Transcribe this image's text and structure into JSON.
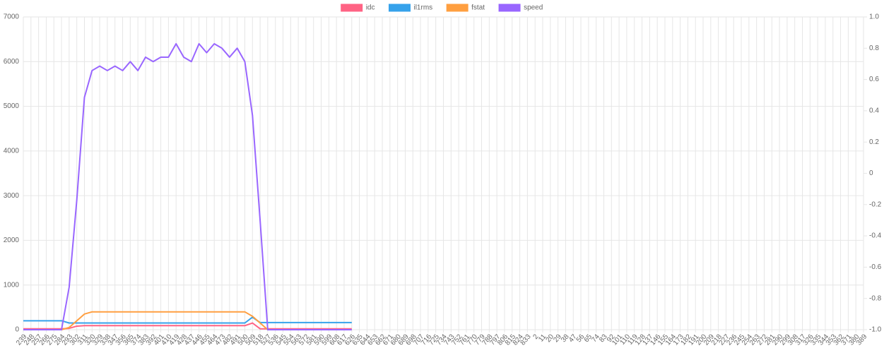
{
  "chart_data": {
    "type": "line",
    "categories": [
      239,
      248,
      257,
      266,
      275,
      284,
      293,
      302,
      311,
      320,
      329,
      338,
      347,
      356,
      365,
      374,
      383,
      392,
      401,
      410,
      419,
      428,
      437,
      446,
      455,
      464,
      473,
      482,
      491,
      500,
      509,
      518,
      527,
      536,
      545,
      554,
      563,
      572,
      581,
      590,
      599,
      608,
      617,
      626,
      635,
      644,
      653,
      662,
      671,
      680,
      689,
      698,
      707,
      716,
      725,
      734,
      743,
      752,
      761,
      770,
      779,
      788,
      797,
      806,
      815,
      824,
      833,
      2,
      11,
      20,
      29,
      38,
      47,
      56,
      65,
      74,
      83,
      92,
      101,
      110,
      119,
      128,
      137,
      146,
      155,
      164,
      173,
      182,
      191,
      200,
      209,
      218,
      227,
      236,
      245,
      254,
      263,
      272,
      281,
      290,
      299,
      308,
      317,
      326,
      335,
      344,
      353,
      362,
      371,
      380,
      389
    ],
    "series": [
      {
        "name": "idc",
        "color": "#ff6384",
        "values": [
          20,
          20,
          20,
          20,
          20,
          20,
          30,
          80,
          90,
          90,
          90,
          90,
          90,
          90,
          90,
          90,
          90,
          90,
          90,
          90,
          90,
          90,
          90,
          90,
          90,
          90,
          90,
          90,
          90,
          90,
          150,
          20,
          20,
          20,
          20,
          20,
          20,
          20,
          20,
          20,
          20,
          20,
          20,
          20,
          null,
          null,
          null,
          null,
          null,
          null,
          null,
          null,
          null,
          null,
          null,
          null,
          null,
          null,
          null,
          null,
          null,
          null,
          null,
          null,
          null,
          null,
          null,
          null,
          null,
          null,
          null,
          null,
          null,
          null,
          null,
          null,
          null,
          null,
          null,
          null,
          null,
          null,
          null,
          null,
          null,
          null,
          null,
          null,
          null,
          null,
          null,
          null,
          null,
          null,
          null,
          null,
          null,
          null,
          null,
          null,
          null,
          null,
          null,
          null,
          null,
          null,
          null,
          null,
          null,
          null,
          null
        ]
      },
      {
        "name": "il1rms",
        "color": "#36a2eb",
        "values": [
          200,
          200,
          200,
          200,
          200,
          200,
          150,
          150,
          150,
          150,
          150,
          150,
          150,
          150,
          150,
          150,
          150,
          150,
          150,
          150,
          150,
          150,
          150,
          150,
          150,
          150,
          150,
          150,
          150,
          150,
          280,
          160,
          160,
          160,
          160,
          160,
          160,
          160,
          160,
          160,
          160,
          160,
          160,
          160,
          null,
          null,
          null,
          null,
          null,
          null,
          null,
          null,
          null,
          null,
          null,
          null,
          null,
          null,
          null,
          null,
          null,
          null,
          null,
          null,
          null,
          null,
          null,
          null,
          null,
          null,
          null,
          null,
          null,
          null,
          null,
          null,
          null,
          null,
          null,
          null,
          null,
          null,
          null,
          null,
          null,
          null,
          null,
          null,
          null,
          null,
          null,
          null,
          null,
          null,
          null,
          null,
          null,
          null,
          null,
          null,
          null,
          null,
          null,
          null,
          null,
          null,
          null,
          null,
          null,
          null,
          null
        ]
      },
      {
        "name": "fstat",
        "color": "#ff9f40",
        "values": [
          0,
          0,
          0,
          0,
          0,
          0,
          50,
          200,
          350,
          400,
          400,
          400,
          400,
          400,
          400,
          400,
          400,
          400,
          400,
          400,
          400,
          400,
          400,
          400,
          400,
          400,
          400,
          400,
          400,
          400,
          300,
          150,
          0,
          0,
          0,
          0,
          0,
          0,
          0,
          0,
          0,
          0,
          0,
          0,
          null,
          null,
          null,
          null,
          null,
          null,
          null,
          null,
          null,
          null,
          null,
          null,
          null,
          null,
          null,
          null,
          null,
          null,
          null,
          null,
          null,
          null,
          null,
          null,
          null,
          null,
          null,
          null,
          null,
          null,
          null,
          null,
          null,
          null,
          null,
          null,
          null,
          null,
          null,
          null,
          null,
          null,
          null,
          null,
          null,
          null,
          null,
          null,
          null,
          null,
          null,
          null,
          null,
          null,
          null,
          null,
          null,
          null,
          null,
          null,
          null,
          null,
          null,
          null,
          null,
          null,
          null
        ]
      },
      {
        "name": "speed",
        "color": "#9966ff",
        "values": [
          0,
          0,
          0,
          0,
          0,
          0,
          950,
          2900,
          5200,
          5800,
          5900,
          5800,
          5900,
          5800,
          6000,
          5800,
          6100,
          6000,
          6100,
          6100,
          6400,
          6100,
          6000,
          6400,
          6200,
          6400,
          6300,
          6100,
          6300,
          6000,
          4800,
          2450,
          0,
          0,
          0,
          0,
          0,
          0,
          0,
          0,
          0,
          0,
          0,
          0,
          null,
          null,
          null,
          null,
          null,
          null,
          null,
          null,
          null,
          null,
          null,
          null,
          null,
          null,
          null,
          null,
          null,
          null,
          null,
          null,
          null,
          null,
          null,
          null,
          null,
          null,
          null,
          null,
          null,
          null,
          null,
          null,
          null,
          null,
          null,
          null,
          null,
          null,
          null,
          null,
          null,
          null,
          null,
          null,
          null,
          null,
          null,
          null,
          null,
          null,
          null,
          null,
          null,
          null,
          null,
          null,
          null,
          null,
          null,
          null,
          null,
          null,
          null,
          null,
          null,
          null,
          null
        ]
      }
    ],
    "ylim": [
      0,
      7000
    ],
    "yticks": [
      0,
      1000,
      2000,
      3000,
      4000,
      5000,
      6000,
      7000
    ],
    "y2lim": [
      -1,
      1
    ],
    "y2ticks": [
      {
        "value": -1,
        "label": "-1.0"
      },
      -0.8,
      -0.6,
      -0.4,
      -0.2,
      0,
      0.2,
      0.4,
      0.6,
      0.8,
      {
        "value": 1,
        "label": "1.0"
      }
    ],
    "grid": true,
    "legend": "top"
  }
}
